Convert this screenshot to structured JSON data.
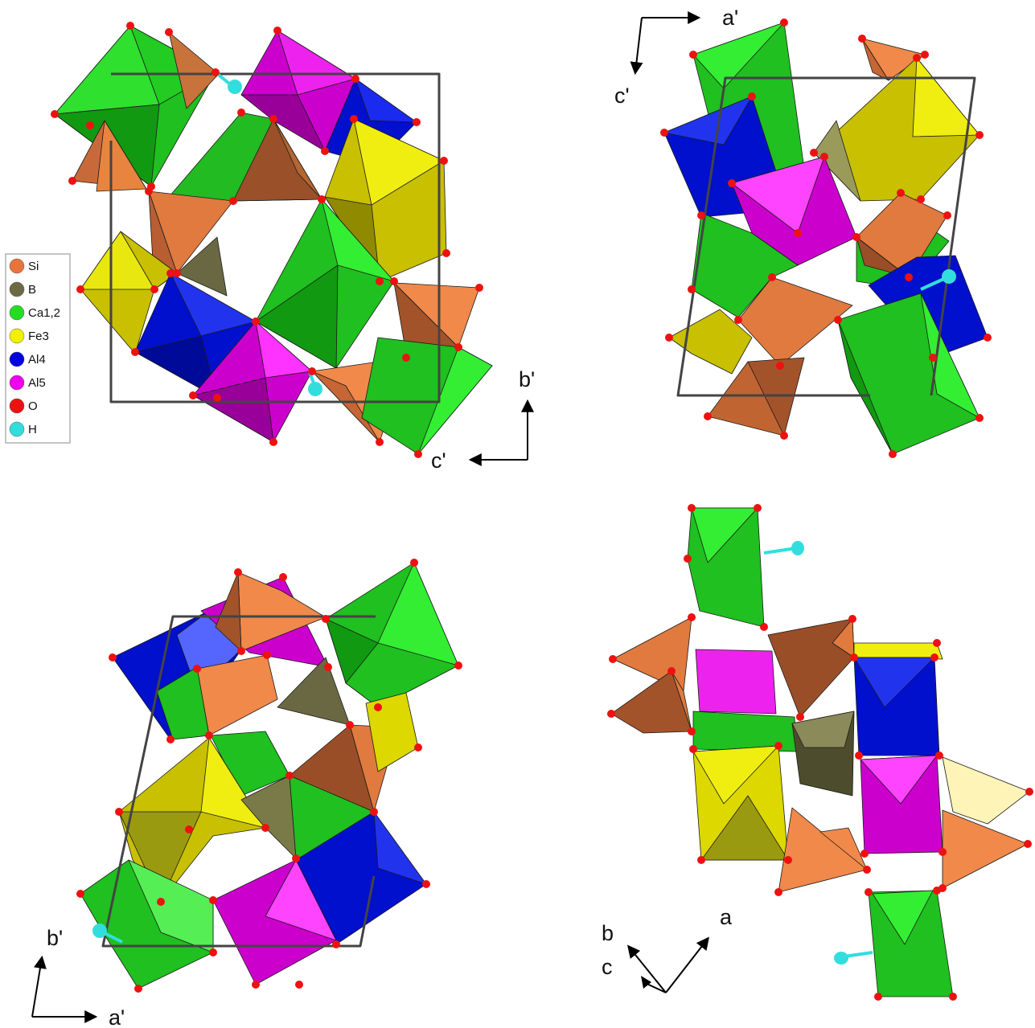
{
  "legend": {
    "items": [
      {
        "label": "Si",
        "color": "#e8743c"
      },
      {
        "label": "B",
        "color": "#6b6a42"
      },
      {
        "label": "Ca1,2",
        "color": "#22dd22"
      },
      {
        "label": "Fe3",
        "color": "#f0f000"
      },
      {
        "label": "Al4",
        "color": "#0000e0"
      },
      {
        "label": "Al5",
        "color": "#ee00ee"
      },
      {
        "label": "O",
        "color": "#ee1111"
      },
      {
        "label": "H",
        "color": "#33dddd"
      }
    ]
  },
  "panels": {
    "top_left": {
      "axis1": "b'",
      "axis2": "c'"
    },
    "top_right": {
      "axis1": "a'",
      "axis2": "c'"
    },
    "bottom_left": {
      "axis1": "b'",
      "axis2": "a'"
    },
    "bottom_right": {
      "axis1": "a",
      "axis2": "b",
      "axis3": "c"
    }
  }
}
